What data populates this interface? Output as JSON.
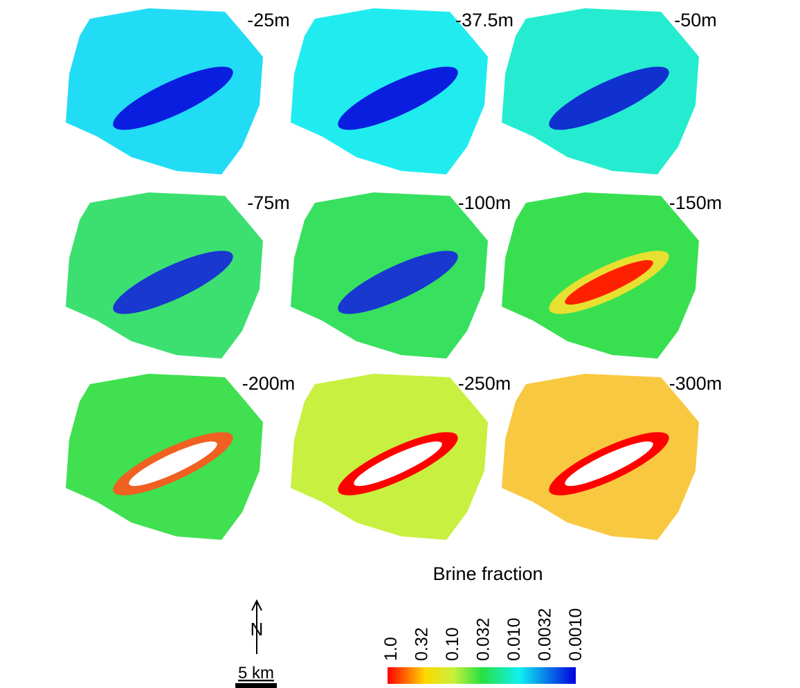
{
  "panels": [
    {
      "label": "-25m"
    },
    {
      "label": "-37.5m"
    },
    {
      "label": "-50m"
    },
    {
      "label": "-75m"
    },
    {
      "label": "-100m"
    },
    {
      "label": "-150m"
    },
    {
      "label": "-200m"
    },
    {
      "label": "-250m"
    },
    {
      "label": "-300m"
    }
  ],
  "legend": {
    "title": "Brine fraction",
    "labels": [
      "1.0",
      "0.32",
      "0.10",
      "0.032",
      "0.010",
      "0.0032",
      "0.0010"
    ]
  },
  "north": "N",
  "scale": "5 km"
}
